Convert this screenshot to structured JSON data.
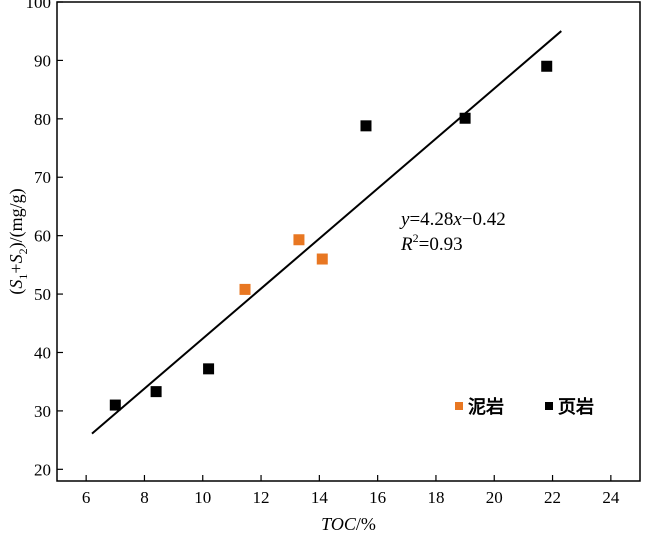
{
  "chart_data": {
    "type": "scatter",
    "xlabel": "TOC/%",
    "ylabel": "(S1+S2)/(mg/g)",
    "xlim": [
      5,
      25
    ],
    "ylim": [
      18,
      100
    ],
    "xticks": [
      6,
      8,
      10,
      12,
      14,
      16,
      18,
      20,
      22,
      24
    ],
    "yticks": [
      20,
      30,
      40,
      50,
      60,
      70,
      80,
      90,
      100
    ],
    "grid": false,
    "legend_position": "bottom-right",
    "series": [
      {
        "name": "泥岩",
        "color": "#E87722",
        "marker": "square",
        "points": [
          {
            "x": 11.45,
            "y": 50.8
          },
          {
            "x": 13.3,
            "y": 59.3
          },
          {
            "x": 14.1,
            "y": 56.0
          }
        ]
      },
      {
        "name": "页岩",
        "color": "#000000",
        "marker": "square",
        "points": [
          {
            "x": 7.0,
            "y": 31.0
          },
          {
            "x": 8.4,
            "y": 33.3
          },
          {
            "x": 10.2,
            "y": 37.2
          },
          {
            "x": 15.6,
            "y": 78.8
          },
          {
            "x": 19.0,
            "y": 80.1
          },
          {
            "x": 21.8,
            "y": 89.0
          }
        ]
      }
    ],
    "fit": {
      "slope": 4.28,
      "intercept": -0.42,
      "x_range": [
        6.2,
        22.3
      ],
      "equation": "y=4.28x−0.42",
      "r2": "R²=0.93"
    }
  }
}
